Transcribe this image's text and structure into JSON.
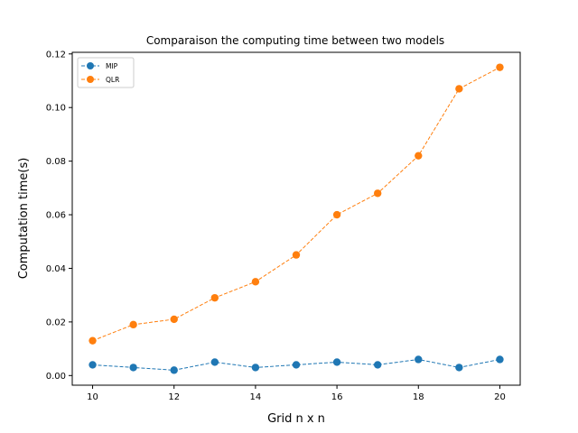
{
  "chart_data": {
    "type": "line",
    "title": "Comparaison the computing time between two models",
    "xlabel": "Grid n x n",
    "ylabel": "Computation time(s)",
    "x": [
      10,
      11,
      12,
      13,
      14,
      15,
      16,
      17,
      18,
      19,
      20
    ],
    "xlim": [
      9.5,
      20.5
    ],
    "ylim": [
      -0.0036,
      0.1206
    ],
    "xticks": [
      10,
      12,
      14,
      16,
      18,
      20
    ],
    "xtick_labels": [
      "10",
      "12",
      "14",
      "16",
      "18",
      "20"
    ],
    "yticks": [
      0.0,
      0.02,
      0.04,
      0.06,
      0.08,
      0.1,
      0.12
    ],
    "ytick_labels": [
      "0.00",
      "0.02",
      "0.04",
      "0.06",
      "0.08",
      "0.10",
      "0.12"
    ],
    "grid": false,
    "legend_position": "top-left",
    "series": [
      {
        "name": "MIP",
        "color": "#1f77b4",
        "line_style": "dashed",
        "marker": "circle",
        "values": [
          0.004,
          0.003,
          0.002,
          0.005,
          0.003,
          0.004,
          0.005,
          0.004,
          0.006,
          0.003,
          0.006
        ]
      },
      {
        "name": "QLR",
        "color": "#ff7f0e",
        "line_style": "dashed",
        "marker": "circle",
        "values": [
          0.013,
          0.019,
          0.021,
          0.029,
          0.035,
          0.045,
          0.06,
          0.068,
          0.082,
          0.107,
          0.115
        ]
      }
    ]
  }
}
